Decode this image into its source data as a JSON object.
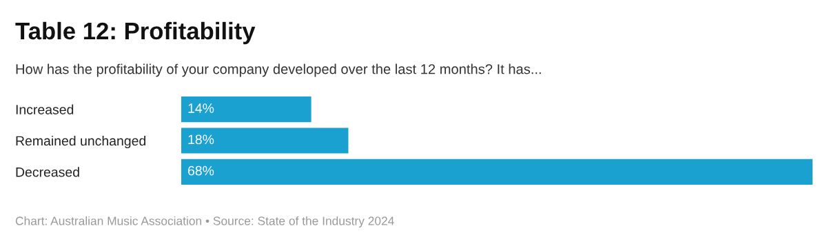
{
  "chart_data": {
    "type": "bar",
    "orientation": "horizontal",
    "title": "Table 12: Profitability",
    "subtitle": "How has the profitability of your company developed over the last 12 months? It has...",
    "categories": [
      "Increased",
      "Remained unchanged",
      "Decreased"
    ],
    "values": [
      14,
      18,
      68
    ],
    "color": "#1aa1cf",
    "value_labels": [
      "14%",
      "18%",
      "68%"
    ],
    "annotations": [
      "Chart: Australian Music Association • Source: State of the Industry 2024"
    ],
    "grid": false,
    "legend": false
  }
}
